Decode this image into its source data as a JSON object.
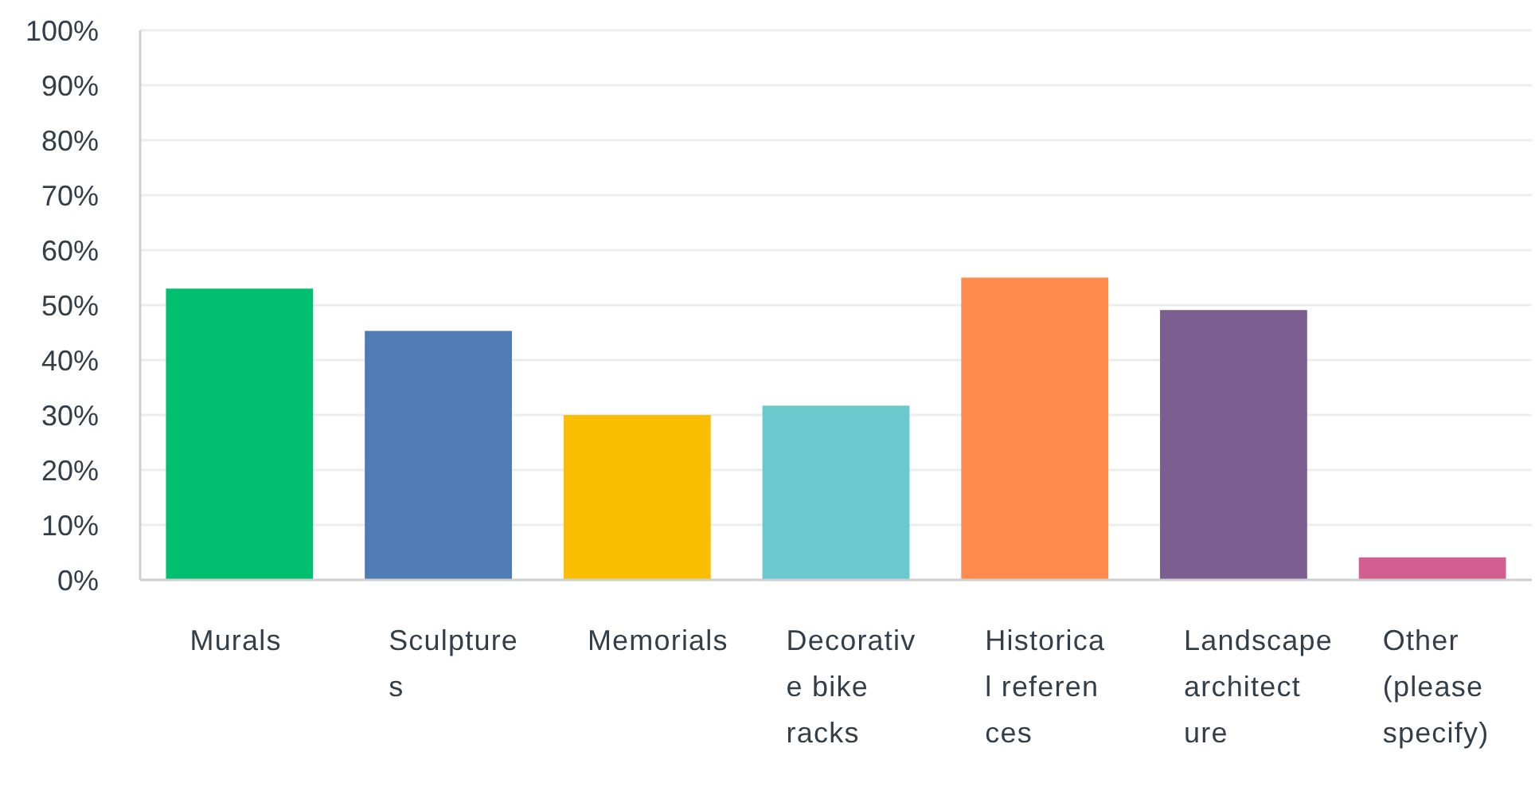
{
  "chart_data": {
    "type": "bar",
    "categories": [
      "Murals",
      "Sculptures",
      "Memorials",
      "Decorative bike racks",
      "Historical references",
      "Landscape architecture",
      "Other (please specify)"
    ],
    "values": [
      53,
      45.3,
      30,
      31.7,
      55,
      49.1,
      4.1
    ],
    "colors": [
      "#00bf6f",
      "#507cb6",
      "#f9be00",
      "#6bc8cd",
      "#ff8b4f",
      "#7d5e90",
      "#d25f90"
    ],
    "ylim": [
      0,
      100
    ],
    "yticks": [
      {
        "value": 0,
        "label": "0%"
      },
      {
        "value": 10,
        "label": "10%"
      },
      {
        "value": 20,
        "label": "20%"
      },
      {
        "value": 30,
        "label": "30%"
      },
      {
        "value": 40,
        "label": "40%"
      },
      {
        "value": 50,
        "label": "50%"
      },
      {
        "value": 60,
        "label": "60%"
      },
      {
        "value": 70,
        "label": "70%"
      },
      {
        "value": 80,
        "label": "80%"
      },
      {
        "value": 90,
        "label": "90%"
      },
      {
        "value": 100,
        "label": "100%"
      }
    ],
    "grid": "y"
  }
}
